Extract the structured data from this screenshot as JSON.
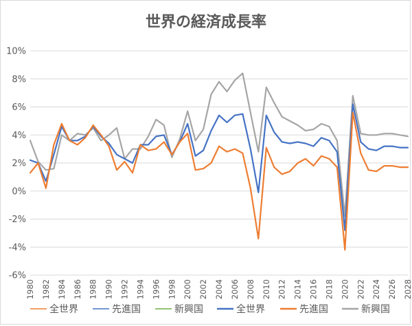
{
  "chart_data": {
    "type": "line",
    "title": "世界の経済成長率",
    "xlabel": "",
    "ylabel": "",
    "ylim": [
      -6,
      10
    ],
    "yticks": [
      -6,
      -4,
      -2,
      0,
      2,
      4,
      6,
      8,
      10
    ],
    "ytick_labels": [
      "-6%",
      "-4%",
      "-2%",
      "0%",
      "2%",
      "4%",
      "6%",
      "8%",
      "10%"
    ],
    "grid": true,
    "legend_position": "bottom",
    "x": [
      1980,
      1981,
      1982,
      1983,
      1984,
      1985,
      1986,
      1987,
      1988,
      1989,
      1990,
      1991,
      1992,
      1993,
      1994,
      1995,
      1996,
      1997,
      1998,
      1999,
      2000,
      2001,
      2002,
      2003,
      2004,
      2005,
      2006,
      2007,
      2008,
      2009,
      2010,
      2011,
      2012,
      2013,
      2014,
      2015,
      2016,
      2017,
      2018,
      2019,
      2020,
      2021,
      2022,
      2023,
      2024,
      2025,
      2026,
      2027,
      2028
    ],
    "xtick_labels": [
      "1980",
      "1982",
      "1984",
      "1986",
      "1988",
      "1990",
      "1992",
      "1994",
      "1996",
      "1998",
      "2000",
      "2002",
      "2004",
      "2006",
      "2008",
      "2010",
      "2012",
      "2014",
      "2016",
      "2018",
      "2020",
      "2022",
      "2024",
      "2026",
      "2028"
    ],
    "series": [
      {
        "name": "全世界",
        "color": "#4472c4",
        "values": [
          2.2,
          2.0,
          0.7,
          2.6,
          4.6,
          3.6,
          3.6,
          3.9,
          4.6,
          3.9,
          3.4,
          2.6,
          2.3,
          2.0,
          3.3,
          3.3,
          3.9,
          4.0,
          2.6,
          3.5,
          4.8,
          2.5,
          2.9,
          4.3,
          5.4,
          4.9,
          5.4,
          5.5,
          3.0,
          -0.1,
          5.4,
          4.2,
          3.5,
          3.4,
          3.5,
          3.4,
          3.2,
          3.8,
          3.6,
          2.8,
          -2.8,
          6.2,
          3.5,
          3.0,
          2.9,
          3.2,
          3.2,
          3.1,
          3.1
        ]
      },
      {
        "name": "先進国",
        "color": "#ed7d31",
        "values": [
          1.3,
          2.0,
          0.2,
          3.3,
          4.8,
          3.6,
          3.3,
          3.8,
          4.7,
          4.0,
          3.2,
          1.5,
          2.1,
          1.3,
          3.3,
          2.9,
          3.0,
          3.5,
          2.6,
          3.5,
          4.1,
          1.5,
          1.6,
          2.0,
          3.2,
          2.8,
          3.0,
          2.7,
          0.2,
          -3.4,
          3.1,
          1.7,
          1.2,
          1.4,
          2.0,
          2.3,
          1.8,
          2.5,
          2.3,
          1.7,
          -4.2,
          5.6,
          2.7,
          1.5,
          1.4,
          1.8,
          1.8,
          1.7,
          1.7
        ]
      },
      {
        "name": "新興国",
        "color": "#a5a5a5",
        "values": [
          3.6,
          2.1,
          1.5,
          1.6,
          4.0,
          3.6,
          4.1,
          4.0,
          4.5,
          3.6,
          4.0,
          4.5,
          2.3,
          3.0,
          3.0,
          3.9,
          5.1,
          4.7,
          2.4,
          3.7,
          5.7,
          3.6,
          4.4,
          6.9,
          7.8,
          7.1,
          7.9,
          8.4,
          5.6,
          2.8,
          7.4,
          6.3,
          5.3,
          5.0,
          4.7,
          4.3,
          4.4,
          4.8,
          4.6,
          3.6,
          -1.8,
          6.8,
          4.1,
          4.0,
          4.0,
          4.1,
          4.1,
          4.0,
          3.9
        ]
      }
    ],
    "legend": [
      {
        "label": "全世界",
        "color": "#ed7d31",
        "width": 1.5
      },
      {
        "label": "先進国",
        "color": "#4472c4",
        "width": 1.5
      },
      {
        "label": "新興国",
        "color": "#70ad47",
        "width": 1.5
      },
      {
        "label": "全世界",
        "color": "#4472c4",
        "width": 2.5
      },
      {
        "label": "先進国",
        "color": "#ed7d31",
        "width": 2.5
      },
      {
        "label": "新興国",
        "color": "#a5a5a5",
        "width": 2.5
      }
    ],
    "colors": {
      "grid": "#d9d9d9",
      "axis_text": "#595959"
    }
  }
}
